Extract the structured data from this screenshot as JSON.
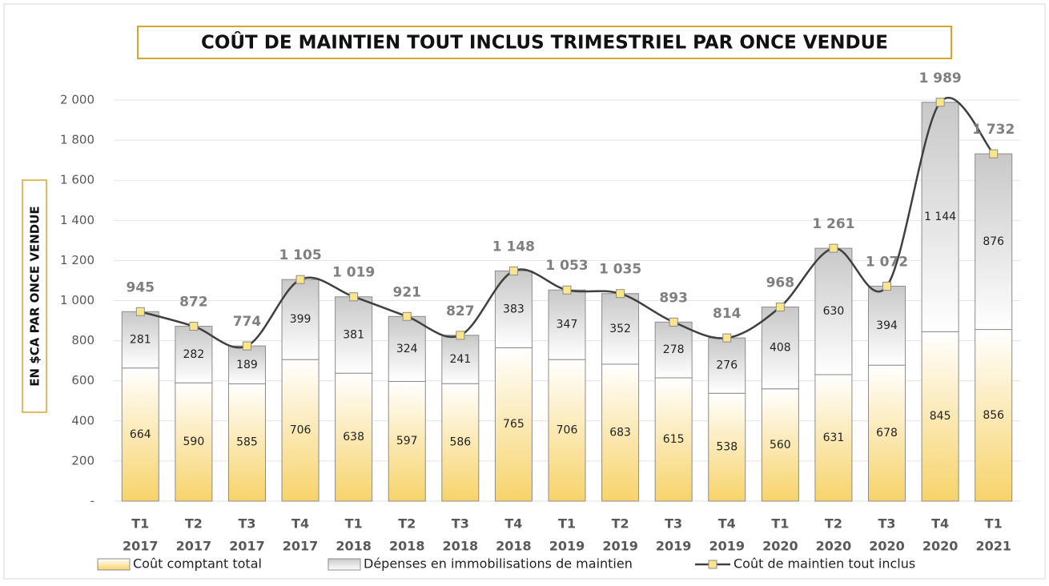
{
  "chart_data": {
    "type": "bar",
    "title": "COÛT DE MAINTIEN TOUT INCLUS TRIMESTRIEL PAR ONCE VENDUE",
    "y_label": "EN $CA PAR ONCE VENDUE",
    "categories": [
      [
        "T1",
        "2017"
      ],
      [
        "T2",
        "2017"
      ],
      [
        "T3",
        "2017"
      ],
      [
        "T4",
        "2017"
      ],
      [
        "T1",
        "2018"
      ],
      [
        "T2",
        "2018"
      ],
      [
        "T3",
        "2018"
      ],
      [
        "T4",
        "2018"
      ],
      [
        "T1",
        "2019"
      ],
      [
        "T2",
        "2019"
      ],
      [
        "T3",
        "2019"
      ],
      [
        "T4",
        "2019"
      ],
      [
        "T1",
        "2020"
      ],
      [
        "T2",
        "2020"
      ],
      [
        "T3",
        "2020"
      ],
      [
        "T4",
        "2020"
      ],
      [
        "T1",
        "2021"
      ]
    ],
    "series": [
      {
        "name": "Coût comptant total",
        "type": "bar",
        "color": "#f7d36a",
        "values": [
          664,
          590,
          585,
          706,
          638,
          597,
          586,
          765,
          706,
          683,
          615,
          538,
          560,
          631,
          678,
          845,
          856
        ]
      },
      {
        "name": "Dépenses en immobilisations de maintien",
        "type": "bar",
        "color": "#c8c8c8",
        "values": [
          281,
          282,
          189,
          399,
          381,
          324,
          241,
          383,
          347,
          352,
          278,
          276,
          408,
          630,
          394,
          1144,
          876
        ],
        "value_labels": [
          "281",
          "282",
          "189",
          "399",
          "381",
          "324",
          "241",
          "383",
          "347",
          "352",
          "278",
          "276",
          "408",
          "630",
          "394",
          "1 144",
          "876"
        ]
      },
      {
        "name": "Coût de maintien tout inclus",
        "type": "line",
        "color": "#404040",
        "marker_color": "#fde68a",
        "values": [
          945,
          872,
          774,
          1105,
          1019,
          921,
          827,
          1148,
          1053,
          1035,
          893,
          814,
          968,
          1261,
          1072,
          1989,
          1732
        ],
        "value_labels": [
          "945",
          "872",
          "774",
          "1 105",
          "1 019",
          "921",
          "827",
          "1 148",
          "1 053",
          "1 035",
          "893",
          "814",
          "968",
          "1 261",
          "1 072",
          "1 989",
          "1 732"
        ]
      }
    ],
    "ylim": [
      0,
      2000
    ],
    "yticks": [
      {
        "value": 0,
        "label": "-"
      },
      200,
      400,
      600,
      800,
      {
        "value": 1000,
        "label": "1 000"
      },
      {
        "value": 1200,
        "label": "1 200"
      },
      {
        "value": 1400,
        "label": "1 400"
      },
      {
        "value": 1600,
        "label": "1 600"
      },
      {
        "value": 1800,
        "label": "1 800"
      },
      {
        "value": 2000,
        "label": "2 000"
      }
    ],
    "grid": true,
    "legend": "bottom"
  }
}
